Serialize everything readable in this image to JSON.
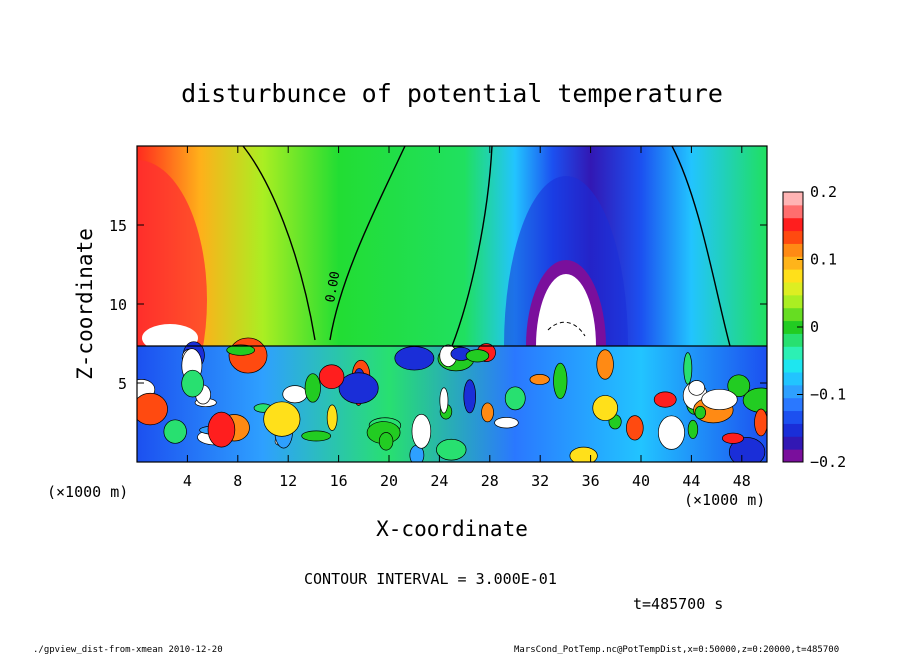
{
  "chart_data": {
    "type": "heatmap",
    "title": "disturbunce of potential temperature",
    "xlabel": "X-coordinate",
    "ylabel": "Z-coordinate",
    "x_unit_left": "(×1000 m)",
    "x_unit_right": "(×1000 m)",
    "xlim": [
      0,
      50
    ],
    "ylim": [
      0,
      20
    ],
    "x_ticks": [
      4,
      8,
      12,
      16,
      20,
      24,
      28,
      32,
      36,
      40,
      44,
      48
    ],
    "y_ticks": [
      5,
      10,
      15
    ],
    "colorbar": {
      "ticks": [
        0.2,
        0.1,
        0,
        -0.1,
        -0.2
      ],
      "tick_labels": [
        "0.2",
        "0.1",
        "0",
        "−0.1",
        "−0.2"
      ],
      "range": [
        -0.2,
        0.2
      ],
      "colors": [
        "#7a0f9c",
        "#3218b4",
        "#1a2ed8",
        "#1c50f0",
        "#2a78ff",
        "#2ea0ff",
        "#22c4ff",
        "#1ee6f0",
        "#2cf0b4",
        "#28e070",
        "#22cc22",
        "#66dd22",
        "#aaee22",
        "#ddee22",
        "#ffe01a",
        "#ffb41a",
        "#ff8a14",
        "#ff4a10",
        "#ff1e1e",
        "#ff6e6e",
        "#ffb4b4"
      ]
    },
    "contour_label": "0.00",
    "contour_interval_text": "CONTOUR INTERVAL = 3.000E-01",
    "time_text": "t=485700 s",
    "footer_left": "./gpview_dist-from-xmean  2010-12-20",
    "footer_right": "MarsCond_PotTemp.nc@PotTempDist,x=0:50000,z=0:20000,t=485700"
  }
}
